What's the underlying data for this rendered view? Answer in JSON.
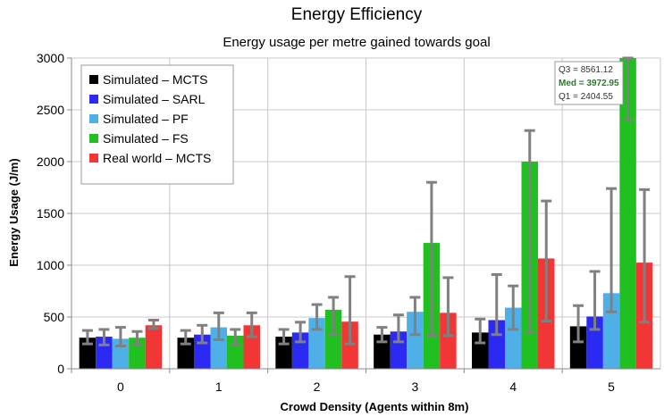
{
  "chart_data": {
    "type": "bar",
    "title": "Energy Efficiency",
    "subtitle": "Energy usage per metre gained towards goal",
    "xlabel": "Crowd Density (Agents within 8m)",
    "ylabel": "Energy Usage (J/m)",
    "categories": [
      "0",
      "1",
      "2",
      "3",
      "4",
      "5"
    ],
    "ylim": [
      0,
      3000
    ],
    "yticks": [
      0,
      500,
      1000,
      1500,
      2000,
      2500,
      3000
    ],
    "grid": true,
    "legend_position": "top-left",
    "series": [
      {
        "name": "Simulated – MCTS",
        "color": "#000000",
        "values": [
          300,
          300,
          310,
          330,
          350,
          410
        ],
        "err_low": [
          240,
          240,
          240,
          260,
          250,
          260
        ],
        "err_high": [
          370,
          370,
          380,
          400,
          480,
          610
        ]
      },
      {
        "name": "Simulated – SARL",
        "color": "#2a2af2",
        "values": [
          310,
          330,
          350,
          360,
          470,
          505
        ],
        "err_low": [
          230,
          250,
          260,
          260,
          330,
          380
        ],
        "err_high": [
          380,
          420,
          450,
          520,
          910,
          940
        ]
      },
      {
        "name": "Simulated – PF",
        "color": "#4fb0e8",
        "values": [
          290,
          400,
          490,
          550,
          590,
          730
        ],
        "err_low": [
          220,
          280,
          380,
          330,
          380,
          550
        ],
        "err_high": [
          400,
          540,
          620,
          690,
          800,
          1740
        ]
      },
      {
        "name": "Simulated – FS",
        "color": "#1fc01f",
        "values": [
          300,
          320,
          570,
          1215,
          2000,
          3000
        ],
        "err_low": [
          230,
          230,
          330,
          320,
          350,
          2400
        ],
        "err_high": [
          360,
          380,
          690,
          1800,
          2300,
          3000
        ]
      },
      {
        "name": "Real world – MCTS",
        "color": "#f23535",
        "values": [
          420,
          420,
          455,
          540,
          1065,
          1025
        ],
        "err_low": [
          390,
          310,
          240,
          320,
          460,
          450
        ],
        "err_high": [
          470,
          540,
          890,
          880,
          1620,
          1730
        ]
      }
    ],
    "annotation": {
      "q3": "Q3 = 8561.12",
      "med": "Med = 3972.95",
      "q1": "Q1 = 2404.55"
    }
  }
}
